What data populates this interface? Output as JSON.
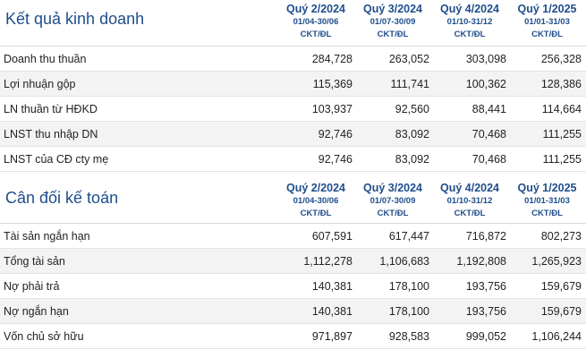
{
  "columns": [
    {
      "label": "Quý 2/2024",
      "range": "01/04-30/06",
      "type": "CKT/ĐL"
    },
    {
      "label": "Quý 3/2024",
      "range": "01/07-30/09",
      "type": "CKT/ĐL"
    },
    {
      "label": "Quý 4/2024",
      "range": "01/10-31/12",
      "type": "CKT/ĐL"
    },
    {
      "label": "Quý 1/2025",
      "range": "01/01-31/03",
      "type": "CKT/ĐL"
    }
  ],
  "income": {
    "title": "Kết quả kinh doanh",
    "rows": [
      {
        "label": "Doanh thu thuần",
        "values": [
          "284,728",
          "263,052",
          "303,098",
          "256,328"
        ]
      },
      {
        "label": "Lợi nhuận gộp",
        "values": [
          "115,369",
          "111,741",
          "100,362",
          "128,386"
        ]
      },
      {
        "label": "LN thuần từ HĐKD",
        "values": [
          "103,937",
          "92,560",
          "88,441",
          "114,664"
        ]
      },
      {
        "label": "LNST thu nhập DN",
        "values": [
          "92,746",
          "83,092",
          "70,468",
          "111,255"
        ]
      },
      {
        "label": "LNST của CĐ cty mẹ",
        "values": [
          "92,746",
          "83,092",
          "70,468",
          "111,255"
        ]
      }
    ]
  },
  "balance": {
    "title": "Cân đối kế toán",
    "rows": [
      {
        "label": "Tài sản ngắn hạn",
        "values": [
          "607,591",
          "617,447",
          "716,872",
          "802,273"
        ]
      },
      {
        "label": "Tổng tài sản",
        "values": [
          "1,112,278",
          "1,106,683",
          "1,192,808",
          "1,265,923"
        ]
      },
      {
        "label": "Nợ phải trả",
        "values": [
          "140,381",
          "178,100",
          "193,756",
          "159,679"
        ]
      },
      {
        "label": "Nợ ngắn hạn",
        "values": [
          "140,381",
          "178,100",
          "193,756",
          "159,679"
        ]
      },
      {
        "label": "Vốn chủ sở hữu",
        "values": [
          "971,897",
          "928,583",
          "999,052",
          "1,106,244"
        ]
      }
    ]
  }
}
